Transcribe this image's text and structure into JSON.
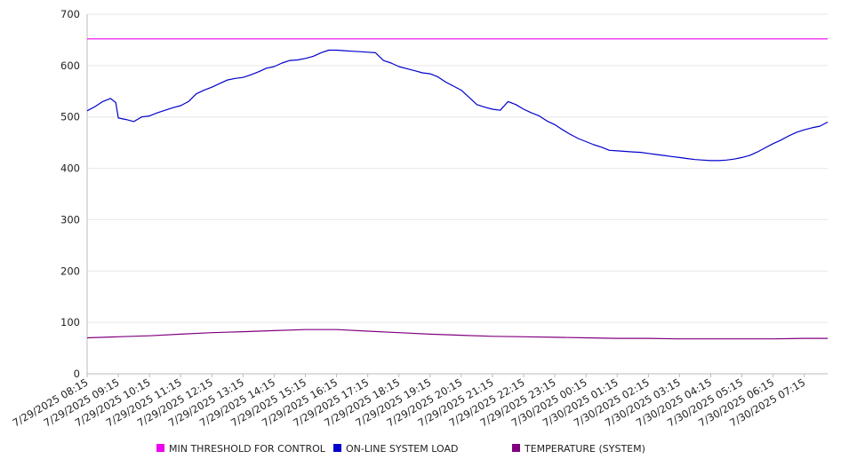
{
  "chart_data": {
    "type": "line",
    "ylim": [
      0,
      700
    ],
    "yticks": [
      0,
      100,
      200,
      300,
      400,
      500,
      600,
      700
    ],
    "xticks": [
      "7/29/2025 08:15",
      "7/29/2025 09:15",
      "7/29/2025 10:15",
      "7/29/2025 11:15",
      "7/29/2025 12:15",
      "7/29/2025 13:15",
      "7/29/2025 14:15",
      "7/29/2025 15:15",
      "7/29/2025 16:15",
      "7/29/2025 17:15",
      "7/29/2025 18:15",
      "7/29/2025 19:15",
      "7/29/2025 20:15",
      "7/29/2025 21:15",
      "7/29/2025 22:15",
      "7/29/2025 23:15",
      "7/30/2025 00:15",
      "7/30/2025 01:15",
      "7/30/2025 02:15",
      "7/30/2025 03:15",
      "7/30/2025 04:15",
      "7/30/2025 05:15",
      "7/30/2025 06:15",
      "7/30/2025 07:15"
    ],
    "x_start": "7/29/2025 08:15",
    "x_end": "7/30/2025 08:00",
    "grid": true,
    "legend_position": "bottom",
    "series": [
      {
        "name": "MIN THRESHOLD FOR CONTROL",
        "color": "#ee00ee",
        "points": [
          [
            "7/29/2025 08:15",
            652
          ],
          [
            "7/30/2025 08:00",
            652
          ]
        ]
      },
      {
        "name": "ON-LINE SYSTEM LOAD",
        "color": "#0000cc",
        "points": [
          [
            "7/29/2025 08:15",
            512
          ],
          [
            "7/29/2025 08:30",
            520
          ],
          [
            "7/29/2025 08:45",
            530
          ],
          [
            "7/29/2025 09:00",
            536
          ],
          [
            "7/29/2025 09:10",
            528
          ],
          [
            "7/29/2025 09:15",
            498
          ],
          [
            "7/29/2025 09:30",
            495
          ],
          [
            "7/29/2025 09:45",
            491
          ],
          [
            "7/29/2025 10:00",
            500
          ],
          [
            "7/29/2025 10:15",
            502
          ],
          [
            "7/29/2025 10:30",
            508
          ],
          [
            "7/29/2025 10:45",
            513
          ],
          [
            "7/29/2025 11:00",
            518
          ],
          [
            "7/29/2025 11:15",
            522
          ],
          [
            "7/29/2025 11:30",
            530
          ],
          [
            "7/29/2025 11:45",
            545
          ],
          [
            "7/29/2025 12:00",
            552
          ],
          [
            "7/29/2025 12:15",
            558
          ],
          [
            "7/29/2025 12:30",
            565
          ],
          [
            "7/29/2025 12:45",
            572
          ],
          [
            "7/29/2025 13:00",
            575
          ],
          [
            "7/29/2025 13:15",
            577
          ],
          [
            "7/29/2025 13:30",
            582
          ],
          [
            "7/29/2025 13:45",
            588
          ],
          [
            "7/29/2025 14:00",
            595
          ],
          [
            "7/29/2025 14:15",
            598
          ],
          [
            "7/29/2025 14:30",
            605
          ],
          [
            "7/29/2025 14:45",
            610
          ],
          [
            "7/29/2025 15:00",
            611
          ],
          [
            "7/29/2025 15:15",
            614
          ],
          [
            "7/29/2025 15:30",
            618
          ],
          [
            "7/29/2025 15:45",
            625
          ],
          [
            "7/29/2025 16:00",
            630
          ],
          [
            "7/29/2025 16:15",
            630
          ],
          [
            "7/29/2025 16:30",
            629
          ],
          [
            "7/29/2025 16:45",
            628
          ],
          [
            "7/29/2025 17:00",
            627
          ],
          [
            "7/29/2025 17:15",
            626
          ],
          [
            "7/29/2025 17:30",
            625
          ],
          [
            "7/29/2025 17:45",
            610
          ],
          [
            "7/29/2025 18:00",
            605
          ],
          [
            "7/29/2025 18:15",
            598
          ],
          [
            "7/29/2025 18:30",
            594
          ],
          [
            "7/29/2025 18:45",
            590
          ],
          [
            "7/29/2025 19:00",
            586
          ],
          [
            "7/29/2025 19:15",
            584
          ],
          [
            "7/29/2025 19:30",
            578
          ],
          [
            "7/29/2025 19:45",
            568
          ],
          [
            "7/29/2025 20:00",
            560
          ],
          [
            "7/29/2025 20:15",
            552
          ],
          [
            "7/29/2025 20:30",
            538
          ],
          [
            "7/29/2025 20:45",
            524
          ],
          [
            "7/29/2025 21:00",
            519
          ],
          [
            "7/29/2025 21:15",
            515
          ],
          [
            "7/29/2025 21:30",
            513
          ],
          [
            "7/29/2025 21:45",
            530
          ],
          [
            "7/29/2025 22:00",
            524
          ],
          [
            "7/29/2025 22:15",
            515
          ],
          [
            "7/29/2025 22:30",
            508
          ],
          [
            "7/29/2025 22:45",
            502
          ],
          [
            "7/29/2025 23:00",
            492
          ],
          [
            "7/29/2025 23:15",
            485
          ],
          [
            "7/29/2025 23:30",
            475
          ],
          [
            "7/29/2025 23:45",
            466
          ],
          [
            "7/30/2025 00:00",
            458
          ],
          [
            "7/30/2025 00:15",
            452
          ],
          [
            "7/30/2025 00:30",
            446
          ],
          [
            "7/30/2025 00:45",
            441
          ],
          [
            "7/30/2025 01:00",
            435
          ],
          [
            "7/30/2025 01:15",
            434
          ],
          [
            "7/30/2025 01:30",
            433
          ],
          [
            "7/30/2025 01:45",
            432
          ],
          [
            "7/30/2025 02:00",
            431
          ],
          [
            "7/30/2025 02:15",
            429
          ],
          [
            "7/30/2025 02:30",
            427
          ],
          [
            "7/30/2025 02:45",
            425
          ],
          [
            "7/30/2025 03:00",
            423
          ],
          [
            "7/30/2025 03:15",
            421
          ],
          [
            "7/30/2025 03:30",
            419
          ],
          [
            "7/30/2025 03:45",
            417
          ],
          [
            "7/30/2025 04:00",
            416
          ],
          [
            "7/30/2025 04:15",
            415
          ],
          [
            "7/30/2025 04:30",
            415
          ],
          [
            "7/30/2025 04:45",
            416
          ],
          [
            "7/30/2025 05:00",
            418
          ],
          [
            "7/30/2025 05:15",
            421
          ],
          [
            "7/30/2025 05:30",
            425
          ],
          [
            "7/30/2025 05:45",
            432
          ],
          [
            "7/30/2025 06:00",
            440
          ],
          [
            "7/30/2025 06:15",
            448
          ],
          [
            "7/30/2025 06:30",
            455
          ],
          [
            "7/30/2025 06:45",
            463
          ],
          [
            "7/30/2025 07:00",
            470
          ],
          [
            "7/30/2025 07:15",
            475
          ],
          [
            "7/30/2025 07:30",
            479
          ],
          [
            "7/30/2025 07:45",
            482
          ],
          [
            "7/30/2025 08:00",
            490
          ]
        ]
      },
      {
        "name": "TEMPERATURE (SYSTEM)",
        "color": "#800080",
        "points": [
          [
            "7/29/2025 08:15",
            70
          ],
          [
            "7/29/2025 09:15",
            72
          ],
          [
            "7/29/2025 10:15",
            74
          ],
          [
            "7/29/2025 11:15",
            77
          ],
          [
            "7/29/2025 12:15",
            80
          ],
          [
            "7/29/2025 13:15",
            82
          ],
          [
            "7/29/2025 14:15",
            84
          ],
          [
            "7/29/2025 15:15",
            86
          ],
          [
            "7/29/2025 16:15",
            86
          ],
          [
            "7/29/2025 17:15",
            83
          ],
          [
            "7/29/2025 18:15",
            80
          ],
          [
            "7/29/2025 19:15",
            77
          ],
          [
            "7/29/2025 20:15",
            75
          ],
          [
            "7/29/2025 21:15",
            73
          ],
          [
            "7/29/2025 22:15",
            72
          ],
          [
            "7/29/2025 23:15",
            71
          ],
          [
            "7/30/2025 00:15",
            70
          ],
          [
            "7/30/2025 01:15",
            69
          ],
          [
            "7/30/2025 02:15",
            69
          ],
          [
            "7/30/2025 03:15",
            68
          ],
          [
            "7/30/2025 04:15",
            68
          ],
          [
            "7/30/2025 05:15",
            68
          ],
          [
            "7/30/2025 06:15",
            68
          ],
          [
            "7/30/2025 07:15",
            69
          ],
          [
            "7/30/2025 08:00",
            69
          ]
        ]
      }
    ]
  }
}
